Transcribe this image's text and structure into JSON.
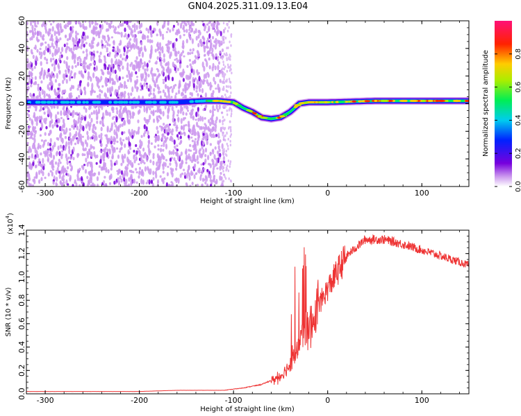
{
  "figure": {
    "title": "GN04.2025.311.09.13.E04"
  },
  "chart_data": [
    {
      "type": "heatmap",
      "xlabel": "Height of straight line (km)",
      "ylabel": "Frequency (Hz)",
      "xlim": [
        -320,
        150
      ],
      "ylim": [
        -60,
        60
      ],
      "x_ticks": [
        -300,
        -200,
        -100,
        0,
        100
      ],
      "y_ticks": [
        -60,
        -40,
        -20,
        0,
        20,
        40,
        60
      ],
      "colorbar": {
        "label": "Normalized spectral amplitude",
        "range": [
          0,
          1
        ],
        "ticks": [
          "0.0",
          "0.2",
          "0.4",
          "0.6",
          "0.8"
        ],
        "colormap": "rainbow (violet → blue → cyan → green → yellow → red → magenta)"
      },
      "ridge": {
        "x": [
          -320,
          -250,
          -200,
          -160,
          -130,
          -115,
          -100,
          -90,
          -80,
          -70,
          -60,
          -50,
          -45,
          -40,
          -30,
          -20,
          -10,
          0,
          50,
          100,
          150
        ],
        "freq": [
          1,
          1,
          1,
          1,
          2,
          2,
          1,
          -3,
          -6,
          -10,
          -11,
          -10,
          -8,
          -6,
          0,
          1,
          1,
          1,
          2,
          2,
          2
        ]
      },
      "grid": false
    },
    {
      "type": "line",
      "xlabel": "Height of straight line (km)",
      "ylabel": "SNR (10 * v/v)",
      "y_scale_label": "(x10",
      "y_scale_exponent": "4",
      "xlim": [
        -320,
        150
      ],
      "ylim": [
        0,
        1.4
      ],
      "x_ticks": [
        -300,
        -200,
        -100,
        0,
        100
      ],
      "y_ticks": [
        "0.0",
        "0.2",
        "0.4",
        "0.6",
        "0.8",
        "1.0",
        "1.2",
        "1.4"
      ],
      "color": "#ee3333",
      "envelope": {
        "x": [
          -320,
          -200,
          -160,
          -110,
          -90,
          -70,
          -50,
          -40,
          -30,
          -20,
          -10,
          0,
          20,
          40,
          60,
          80,
          100,
          120,
          150
        ],
        "y": [
          0.02,
          0.02,
          0.03,
          0.03,
          0.05,
          0.08,
          0.15,
          0.25,
          0.45,
          0.6,
          0.75,
          0.9,
          1.18,
          1.32,
          1.32,
          1.28,
          1.23,
          1.18,
          1.1
        ]
      },
      "grid": false
    }
  ]
}
